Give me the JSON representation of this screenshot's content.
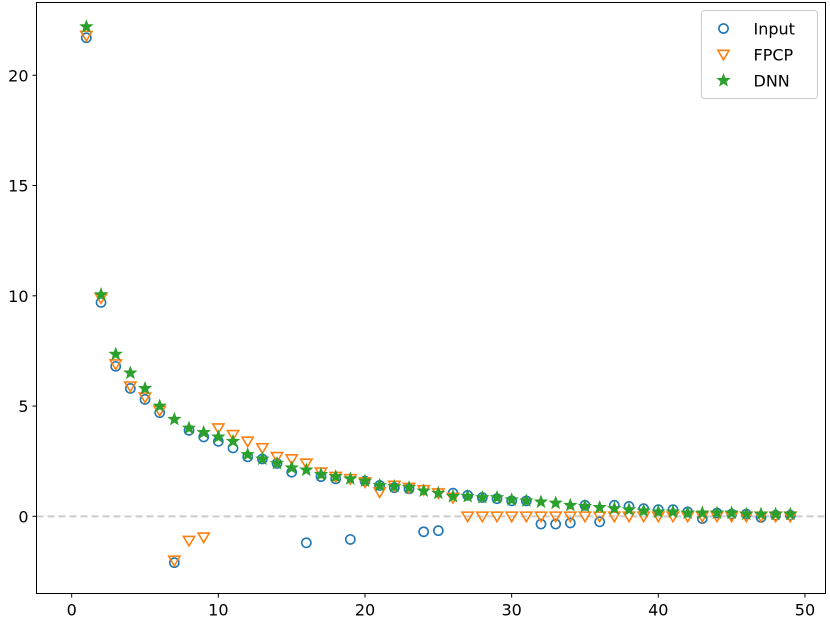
{
  "chart_data": {
    "type": "scatter",
    "title": "",
    "xlabel": "",
    "ylabel": "",
    "xlim": [
      -2.4,
      51.4
    ],
    "ylim": [
      -3.5,
      23.3
    ],
    "xticks": [
      0,
      10,
      20,
      30,
      40,
      50
    ],
    "yticks": [
      0,
      5,
      10,
      15,
      20
    ],
    "grid": false,
    "legend_position": "top-right",
    "reference_line": {
      "y": 0,
      "style": "dashed",
      "color": "#cccccc"
    },
    "series": [
      {
        "name": "Input",
        "marker": "circle-open",
        "color": "#1f77b4",
        "x": [
          1,
          2,
          3,
          4,
          5,
          6,
          7,
          8,
          9,
          10,
          11,
          12,
          13,
          14,
          15,
          16,
          17,
          18,
          19,
          20,
          21,
          22,
          23,
          24,
          25,
          26,
          27,
          28,
          29,
          30,
          31,
          32,
          33,
          34,
          35,
          36,
          37,
          38,
          39,
          40,
          41,
          42,
          43,
          44,
          45,
          46,
          47,
          48,
          49
        ],
        "y": [
          21.7,
          9.7,
          6.8,
          5.8,
          5.3,
          4.7,
          -2.1,
          3.9,
          3.6,
          3.4,
          3.1,
          2.7,
          2.6,
          2.4,
          2.0,
          -1.2,
          1.8,
          1.7,
          -1.05,
          1.6,
          1.4,
          1.3,
          1.25,
          -0.7,
          -0.65,
          1.05,
          0.95,
          0.85,
          0.8,
          0.7,
          0.7,
          -0.35,
          -0.35,
          -0.3,
          0.5,
          -0.25,
          0.5,
          0.45,
          0.35,
          0.3,
          0.3,
          0.2,
          -0.1,
          0.15,
          0.1,
          0.1,
          -0.05,
          0.05,
          0.05
        ]
      },
      {
        "name": "FPCP",
        "marker": "triangle-down-open",
        "color": "#ff7f0e",
        "x": [
          1,
          2,
          3,
          4,
          5,
          6,
          7,
          8,
          9,
          10,
          11,
          12,
          13,
          14,
          15,
          16,
          17,
          18,
          19,
          20,
          21,
          22,
          23,
          24,
          25,
          26,
          27,
          28,
          29,
          30,
          31,
          32,
          33,
          34,
          35,
          36,
          37,
          38,
          39,
          40,
          41,
          42,
          43,
          44,
          45,
          46,
          47,
          48,
          49
        ],
        "y": [
          21.8,
          9.9,
          6.9,
          5.9,
          5.4,
          4.8,
          -2.0,
          -1.1,
          -0.95,
          4.0,
          3.7,
          3.4,
          3.1,
          2.7,
          2.6,
          2.4,
          2.0,
          1.8,
          1.7,
          1.55,
          1.1,
          1.4,
          1.3,
          1.2,
          1.05,
          0.85,
          0.0,
          0.0,
          0.0,
          0.0,
          0.0,
          0.0,
          0.0,
          0.0,
          0.0,
          0.0,
          0.0,
          0.0,
          0.0,
          0.0,
          0.0,
          0.0,
          0.0,
          0.0,
          0.0,
          0.0,
          0.0,
          0.0,
          0.0
        ]
      },
      {
        "name": "DNN",
        "marker": "star",
        "color": "#2ca02c",
        "x": [
          1,
          2,
          3,
          4,
          5,
          6,
          7,
          8,
          9,
          10,
          11,
          12,
          13,
          14,
          15,
          16,
          17,
          18,
          19,
          20,
          21,
          22,
          23,
          24,
          25,
          26,
          27,
          28,
          29,
          30,
          31,
          32,
          33,
          34,
          35,
          36,
          37,
          38,
          39,
          40,
          41,
          42,
          43,
          44,
          45,
          46,
          47,
          48,
          49
        ],
        "y": [
          22.2,
          10.05,
          7.35,
          6.5,
          5.8,
          5.0,
          4.4,
          4.0,
          3.8,
          3.6,
          3.4,
          2.8,
          2.6,
          2.4,
          2.2,
          2.1,
          1.9,
          1.8,
          1.7,
          1.6,
          1.4,
          1.35,
          1.3,
          1.15,
          1.05,
          0.9,
          0.9,
          0.85,
          0.85,
          0.75,
          0.7,
          0.65,
          0.6,
          0.5,
          0.45,
          0.4,
          0.35,
          0.3,
          0.25,
          0.2,
          0.2,
          0.15,
          0.15,
          0.15,
          0.15,
          0.1,
          0.1,
          0.1,
          0.1
        ]
      }
    ]
  }
}
